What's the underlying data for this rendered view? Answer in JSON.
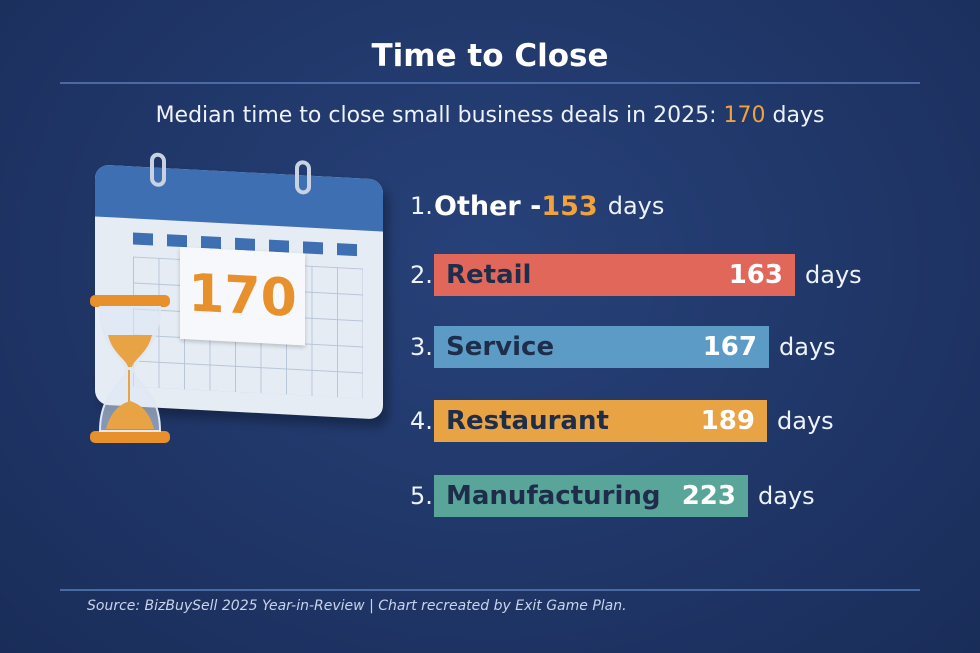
{
  "title": "Time to Close",
  "subtitle": {
    "prefix": "Median time to close small business deals in 2025: ",
    "value": "170",
    "suffix": " days"
  },
  "calendar_number": "170",
  "chart_data": {
    "type": "bar",
    "title": "Time to Close",
    "unit": "days",
    "categories": [
      "Other",
      "Retail",
      "Service",
      "Restaurant",
      "Manufacturing"
    ],
    "values": [
      153,
      163,
      167,
      189,
      223
    ],
    "ranks": [
      "1.",
      "2.",
      "3.",
      "4.",
      "5."
    ],
    "colors": [
      "#ffffff",
      "#e0675a",
      "#5b9bc6",
      "#e8a444",
      "#5aa59a"
    ]
  },
  "labels": {
    "other": "Other -",
    "other_value": "153",
    "days": "days"
  },
  "rows": [
    {
      "rank": "2.",
      "label": "Retail",
      "value": "163"
    },
    {
      "rank": "3.",
      "label": "Service",
      "value": "167"
    },
    {
      "rank": "4.",
      "label": "Restaurant",
      "value": "189"
    },
    {
      "rank": "5.",
      "label": "Manufacturing",
      "value": "223"
    }
  ],
  "footer": "Source: BizBuySell 2025 Year-in-Review | Chart recreated by Exit Game Plan."
}
